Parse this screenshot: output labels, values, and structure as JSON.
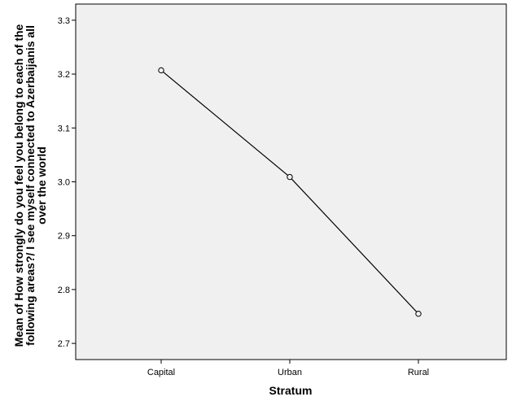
{
  "chart_data": {
    "type": "line",
    "categories": [
      "Capital",
      "Urban",
      "Rural"
    ],
    "series": [
      {
        "values": [
          3.207,
          3.009,
          2.755
        ]
      }
    ],
    "xlabel": "Stratum",
    "ylabel_lines": [
      "Mean of How strongly do you feel you belong to each of the",
      "following areas?/ I see myself connected to Azerbaijanis all",
      "over the world"
    ],
    "ylim": [
      2.67,
      3.33
    ],
    "yticks": [
      "2.7",
      "2.8",
      "2.9",
      "3.0",
      "3.1",
      "3.2",
      "3.3"
    ],
    "grid": false,
    "legend": "none",
    "colors": {
      "plot_background": "#f0f0f0",
      "line": "#000000",
      "marker_fill": "#f0f0f0",
      "frame": "#000000"
    }
  }
}
